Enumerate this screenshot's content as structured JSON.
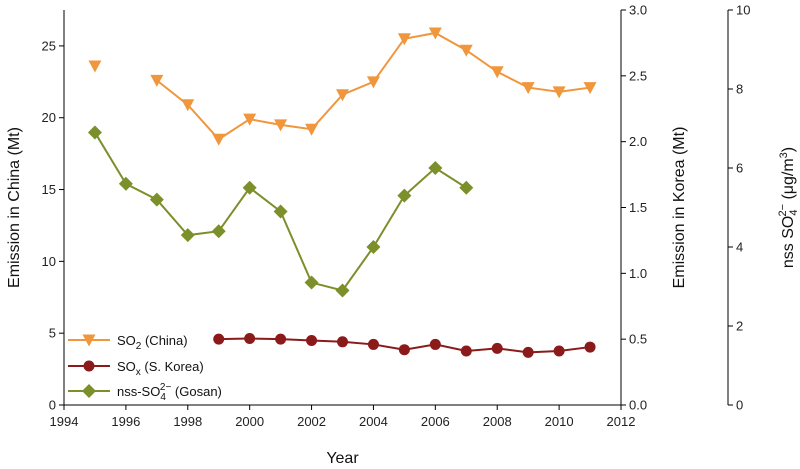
{
  "chart_data": {
    "type": "line",
    "xlabel": "Year",
    "x_ticks": [
      "1994",
      "1996",
      "1998",
      "2000",
      "2002",
      "2004",
      "2006",
      "2008",
      "2010",
      "2012"
    ],
    "xlim": [
      1994,
      2012
    ],
    "axes": {
      "left": {
        "label": "Emission in China (Mt)",
        "ylim": [
          0,
          27.5
        ],
        "ticks": [
          "0",
          "5",
          "10",
          "15",
          "20",
          "25"
        ]
      },
      "right1": {
        "label": "Emission in Korea (Mt)",
        "ylim": [
          0,
          3.0
        ],
        "ticks": [
          "0.0",
          "0.5",
          "1.0",
          "1.5",
          "2.0",
          "2.5",
          "3.0"
        ]
      },
      "right2": {
        "label_main": "nss SO",
        "label_sub": "4",
        "label_sup": "2−",
        "label_unit": " (μg/m",
        "label_unit_sup": "3",
        "label_close": ")",
        "ylim": [
          0,
          10
        ],
        "ticks": [
          "0",
          "2",
          "4",
          "6",
          "8",
          "10"
        ]
      }
    },
    "series": [
      {
        "key": "so2-china",
        "legend_main": "SO",
        "legend_sub": "2",
        "legend_sup": "",
        "legend_rest": " (China)",
        "axis": "left",
        "color": "#F0963C",
        "marker": "triangle-down",
        "segments": [
          {
            "x": [
              1995
            ],
            "y": [
              23.6
            ]
          },
          {
            "x": [
              1997,
              1998,
              1999,
              2000,
              2001,
              2002,
              2003,
              2004,
              2005,
              2006,
              2007,
              2008,
              2009,
              2010,
              2011
            ],
            "y": [
              22.6,
              20.9,
              18.5,
              19.9,
              19.5,
              19.2,
              21.6,
              22.5,
              25.5,
              25.9,
              24.7,
              23.2,
              22.1,
              21.8,
              22.1
            ]
          }
        ]
      },
      {
        "key": "sox-korea",
        "legend_main": "SO",
        "legend_sub": "x",
        "legend_sup": "",
        "legend_rest": " (S. Korea)",
        "axis": "right1",
        "color": "#8B1A1A",
        "marker": "circle",
        "segments": [
          {
            "x": [
              1999,
              2000,
              2001,
              2002,
              2003,
              2004,
              2005,
              2006,
              2007,
              2008,
              2009,
              2010,
              2011
            ],
            "y": [
              0.5,
              0.505,
              0.5,
              0.49,
              0.48,
              0.46,
              0.42,
              0.46,
              0.41,
              0.43,
              0.4,
              0.41,
              0.44
            ]
          }
        ]
      },
      {
        "key": "nss-gosan",
        "legend_main": "nss-SO",
        "legend_sub": "4",
        "legend_sup": "2−",
        "legend_rest": " (Gosan)",
        "axis": "right2",
        "color": "#7B8F2A",
        "marker": "diamond",
        "segments": [
          {
            "x": [
              1995,
              1996,
              1997,
              1998,
              1999,
              2000,
              2001,
              2002,
              2003,
              2004,
              2005,
              2006,
              2007
            ],
            "y": [
              6.9,
              5.6,
              5.2,
              4.3,
              4.4,
              5.5,
              4.9,
              3.1,
              2.9,
              4.0,
              5.3,
              6.0,
              5.5
            ]
          }
        ]
      }
    ],
    "legend_position": "bottom-left",
    "grid": false
  }
}
